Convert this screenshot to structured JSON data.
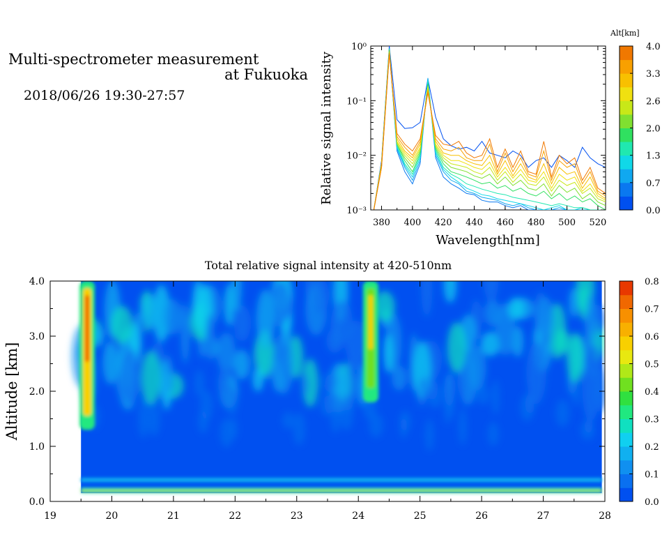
{
  "header": {
    "title_line1": "Multi-spectrometer measurement",
    "title_line2": "at Fukuoka",
    "subtitle": "2018/06/26 19:30-27:57"
  },
  "chart_data": [
    {
      "type": "line",
      "xlabel": "Wavelength[nm]",
      "ylabel": "Relative signal intensity",
      "x_ticks": [
        "380",
        "400",
        "420",
        "440",
        "460",
        "480",
        "500",
        "520"
      ],
      "y_ticks": [
        "10⁰",
        "10⁻¹",
        "10⁻²",
        "10⁻³"
      ],
      "xlim": [
        373,
        525
      ],
      "ylim": [
        0.001,
        1
      ],
      "yscale": "log",
      "colorbar": {
        "title": "Alt[km]",
        "ticks": [
          "4.0",
          "3.3",
          "2.6",
          "2.0",
          "1.3",
          "0.7",
          "0.0"
        ],
        "colors": [
          "#0050f0",
          "#0a78f0",
          "#10a8f0",
          "#10d8e8",
          "#20e8b0",
          "#30e060",
          "#80e030",
          "#c8e818",
          "#f0e010",
          "#f8c000",
          "#f8a000",
          "#f07800"
        ]
      },
      "x": [
        375,
        380,
        385,
        390,
        395,
        400,
        405,
        410,
        415,
        420,
        425,
        430,
        435,
        440,
        445,
        450,
        455,
        460,
        465,
        470,
        475,
        480,
        485,
        490,
        495,
        500,
        505,
        510,
        515,
        520,
        525
      ],
      "series": [
        {
          "alt": 0.0,
          "color": "#0050f0",
          "values": [
            0.001,
            0.008,
            1.0,
            0.045,
            0.031,
            0.032,
            0.04,
            0.25,
            0.05,
            0.02,
            0.015,
            0.013,
            0.014,
            0.012,
            0.018,
            0.011,
            0.01,
            0.009,
            0.012,
            0.01,
            0.006,
            0.008,
            0.009,
            0.006,
            0.01,
            0.008,
            0.006,
            0.014,
            0.009,
            0.007,
            0.006
          ]
        },
        {
          "alt": 0.35,
          "color": "#0a78f0",
          "values": [
            0.001,
            0.007,
            0.9,
            0.012,
            0.005,
            0.003,
            0.007,
            0.25,
            0.009,
            0.004,
            0.003,
            0.0025,
            0.002,
            0.0019,
            0.0015,
            0.0014,
            0.0014,
            0.0012,
            0.0011,
            0.0012,
            0.001,
            0.001,
            0.001,
            0.001,
            0.001,
            0.001,
            0.001,
            0.001,
            0.001,
            0.001,
            0.001
          ]
        },
        {
          "alt": 0.7,
          "color": "#10a8f0",
          "values": [
            0.001,
            0.007,
            0.9,
            0.013,
            0.006,
            0.0035,
            0.008,
            0.26,
            0.01,
            0.005,
            0.0035,
            0.003,
            0.0022,
            0.002,
            0.0017,
            0.0016,
            0.0015,
            0.0013,
            0.0012,
            0.0013,
            0.0011,
            0.001,
            0.001,
            0.001,
            0.0011,
            0.001,
            0.001,
            0.001,
            0.001,
            0.001,
            0.001
          ]
        },
        {
          "alt": 1.0,
          "color": "#10d8e8",
          "values": [
            0.001,
            0.007,
            0.9,
            0.014,
            0.0065,
            0.004,
            0.009,
            0.24,
            0.011,
            0.0055,
            0.004,
            0.0032,
            0.0025,
            0.0022,
            0.0019,
            0.0018,
            0.0016,
            0.0015,
            0.0014,
            0.0013,
            0.0012,
            0.0011,
            0.001,
            0.0011,
            0.0012,
            0.001,
            0.001,
            0.0011,
            0.001,
            0.001,
            0.001
          ]
        },
        {
          "alt": 1.3,
          "color": "#20e8b0",
          "values": [
            0.001,
            0.007,
            0.9,
            0.015,
            0.007,
            0.0045,
            0.01,
            0.22,
            0.012,
            0.006,
            0.0045,
            0.0038,
            0.003,
            0.0027,
            0.0024,
            0.0022,
            0.002,
            0.0019,
            0.0017,
            0.0016,
            0.0015,
            0.0014,
            0.0013,
            0.0012,
            0.0013,
            0.0012,
            0.0011,
            0.0011,
            0.001,
            0.001,
            0.001
          ]
        },
        {
          "alt": 1.7,
          "color": "#30e060",
          "values": [
            0.001,
            0.007,
            0.85,
            0.016,
            0.008,
            0.005,
            0.011,
            0.2,
            0.013,
            0.007,
            0.005,
            0.0045,
            0.004,
            0.0035,
            0.003,
            0.0032,
            0.0025,
            0.0028,
            0.0022,
            0.0025,
            0.002,
            0.0018,
            0.0022,
            0.0016,
            0.002,
            0.0015,
            0.0018,
            0.0014,
            0.0016,
            0.0012,
            0.001
          ]
        },
        {
          "alt": 2.0,
          "color": "#80e030",
          "values": [
            0.001,
            0.007,
            0.85,
            0.016,
            0.009,
            0.006,
            0.012,
            0.19,
            0.014,
            0.008,
            0.006,
            0.0055,
            0.005,
            0.0042,
            0.0038,
            0.0045,
            0.003,
            0.004,
            0.0028,
            0.0035,
            0.0025,
            0.0023,
            0.003,
            0.0018,
            0.0028,
            0.0021,
            0.0025,
            0.0016,
            0.002,
            0.0014,
            0.0012
          ]
        },
        {
          "alt": 2.4,
          "color": "#c8e818",
          "values": [
            0.001,
            0.007,
            0.8,
            0.017,
            0.01,
            0.007,
            0.013,
            0.18,
            0.015,
            0.009,
            0.007,
            0.0065,
            0.006,
            0.005,
            0.0045,
            0.006,
            0.0035,
            0.005,
            0.0032,
            0.0045,
            0.003,
            0.0028,
            0.004,
            0.0022,
            0.0035,
            0.0028,
            0.0032,
            0.002,
            0.0025,
            0.0016,
            0.0014
          ]
        },
        {
          "alt": 2.8,
          "color": "#f0e010",
          "values": [
            0.001,
            0.007,
            0.8,
            0.018,
            0.011,
            0.008,
            0.014,
            0.17,
            0.016,
            0.01,
            0.008,
            0.008,
            0.007,
            0.006,
            0.0055,
            0.0075,
            0.004,
            0.006,
            0.0038,
            0.0055,
            0.0035,
            0.0032,
            0.005,
            0.0025,
            0.0045,
            0.0035,
            0.004,
            0.0022,
            0.003,
            0.0018,
            0.0015
          ]
        },
        {
          "alt": 3.2,
          "color": "#f8c000",
          "values": [
            0.001,
            0.006,
            0.75,
            0.02,
            0.012,
            0.009,
            0.016,
            0.16,
            0.018,
            0.011,
            0.01,
            0.01,
            0.008,
            0.007,
            0.0065,
            0.01,
            0.0045,
            0.008,
            0.0042,
            0.007,
            0.004,
            0.0035,
            0.007,
            0.003,
            0.006,
            0.0045,
            0.005,
            0.0025,
            0.004,
            0.002,
            0.0016
          ]
        },
        {
          "alt": 3.6,
          "color": "#f8a000",
          "values": [
            0.001,
            0.006,
            0.75,
            0.022,
            0.014,
            0.01,
            0.018,
            0.15,
            0.02,
            0.013,
            0.012,
            0.014,
            0.009,
            0.008,
            0.008,
            0.016,
            0.005,
            0.011,
            0.005,
            0.009,
            0.0045,
            0.004,
            0.012,
            0.0035,
            0.008,
            0.006,
            0.007,
            0.003,
            0.005,
            0.0022,
            0.0018
          ]
        },
        {
          "alt": 4.0,
          "color": "#f07800",
          "values": [
            0.001,
            0.006,
            0.7,
            0.025,
            0.016,
            0.012,
            0.02,
            0.14,
            0.023,
            0.016,
            0.015,
            0.018,
            0.011,
            0.009,
            0.01,
            0.02,
            0.006,
            0.013,
            0.006,
            0.012,
            0.005,
            0.0045,
            0.018,
            0.004,
            0.01,
            0.007,
            0.009,
            0.0035,
            0.006,
            0.0025,
            0.002
          ]
        }
      ]
    },
    {
      "type": "heatmap",
      "title": "Total relative signal intensity at 420-510nm",
      "ylabel": "Altitude [km]",
      "xlabel": "",
      "x_ticks": [
        "19",
        "20",
        "21",
        "22",
        "23",
        "24",
        "25",
        "26",
        "27",
        "28"
      ],
      "y_ticks": [
        "0.0",
        "1.0",
        "2.0",
        "3.0",
        "4.0"
      ],
      "xlim": [
        19,
        28
      ],
      "ylim": [
        0,
        4
      ],
      "data_x_range": [
        19.5,
        27.95
      ],
      "data_y_range": [
        0.15,
        4.0
      ],
      "colorbar": {
        "ticks": [
          "0.8",
          "0.7",
          "0.6",
          "0.5",
          "0.4",
          "0.3",
          "0.2",
          "0.1",
          "0.0"
        ],
        "colors": [
          "#0050f0",
          "#0a70f0",
          "#1090f0",
          "#10b0f0",
          "#10d0f0",
          "#10e0c0",
          "#20e880",
          "#30e040",
          "#70e020",
          "#b0e818",
          "#e8e810",
          "#f8d000",
          "#f8b000",
          "#f89000",
          "#f06800",
          "#e83800"
        ]
      },
      "features": [
        {
          "name": "plume",
          "x": 24.2,
          "y_from": 1.8,
          "y_to": 4.0,
          "intensity": 0.6
        },
        {
          "name": "left-edge",
          "x": 19.6,
          "y_from": 1.3,
          "y_to": 4.0,
          "intensity": 0.75
        },
        {
          "name": "surface-band",
          "x_from": 19.5,
          "x_to": 27.95,
          "y": 0.2,
          "intensity": 0.35
        }
      ]
    }
  ]
}
